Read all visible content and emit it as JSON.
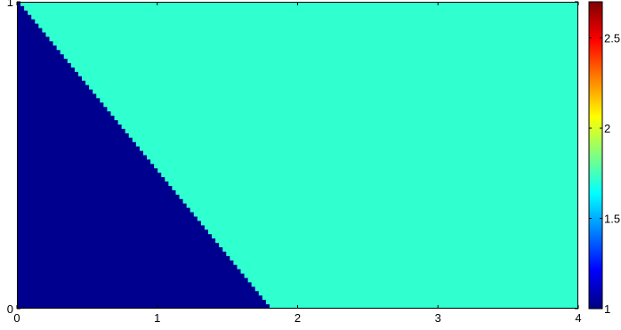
{
  "chart_data": {
    "type": "heatmap",
    "title": "",
    "xlabel": "",
    "ylabel": "",
    "xlim": [
      0,
      4
    ],
    "ylim": [
      0,
      1
    ],
    "x_ticks": [
      0,
      1,
      2,
      3,
      4
    ],
    "y_ticks": [
      0,
      1
    ],
    "x_tick_labels": [
      "0",
      "1",
      "2",
      "3",
      "4"
    ],
    "y_tick_labels": [
      "0",
      "1"
    ],
    "regions": [
      {
        "value": 1.0,
        "color": "#00008f",
        "boundary": [
          [
            0,
            1
          ],
          [
            1.8,
            0
          ],
          [
            0,
            0
          ]
        ]
      },
      {
        "value": 1.82,
        "color": "#30ffd0",
        "boundary": [
          [
            0,
            1
          ],
          [
            4,
            1
          ],
          [
            4,
            0
          ],
          [
            1.8,
            0
          ]
        ]
      }
    ],
    "boundary_line": {
      "x_at_top": 0,
      "x_at_bottom": 1.8,
      "steps": 70
    },
    "colorbar": {
      "colormap": "jet",
      "min": 1,
      "max": 2.7,
      "ticks": [
        1,
        1.5,
        2,
        2.5
      ],
      "tick_labels": [
        "1",
        "1.5",
        "2",
        "2.5"
      ]
    },
    "grid": false,
    "legend": "none"
  }
}
